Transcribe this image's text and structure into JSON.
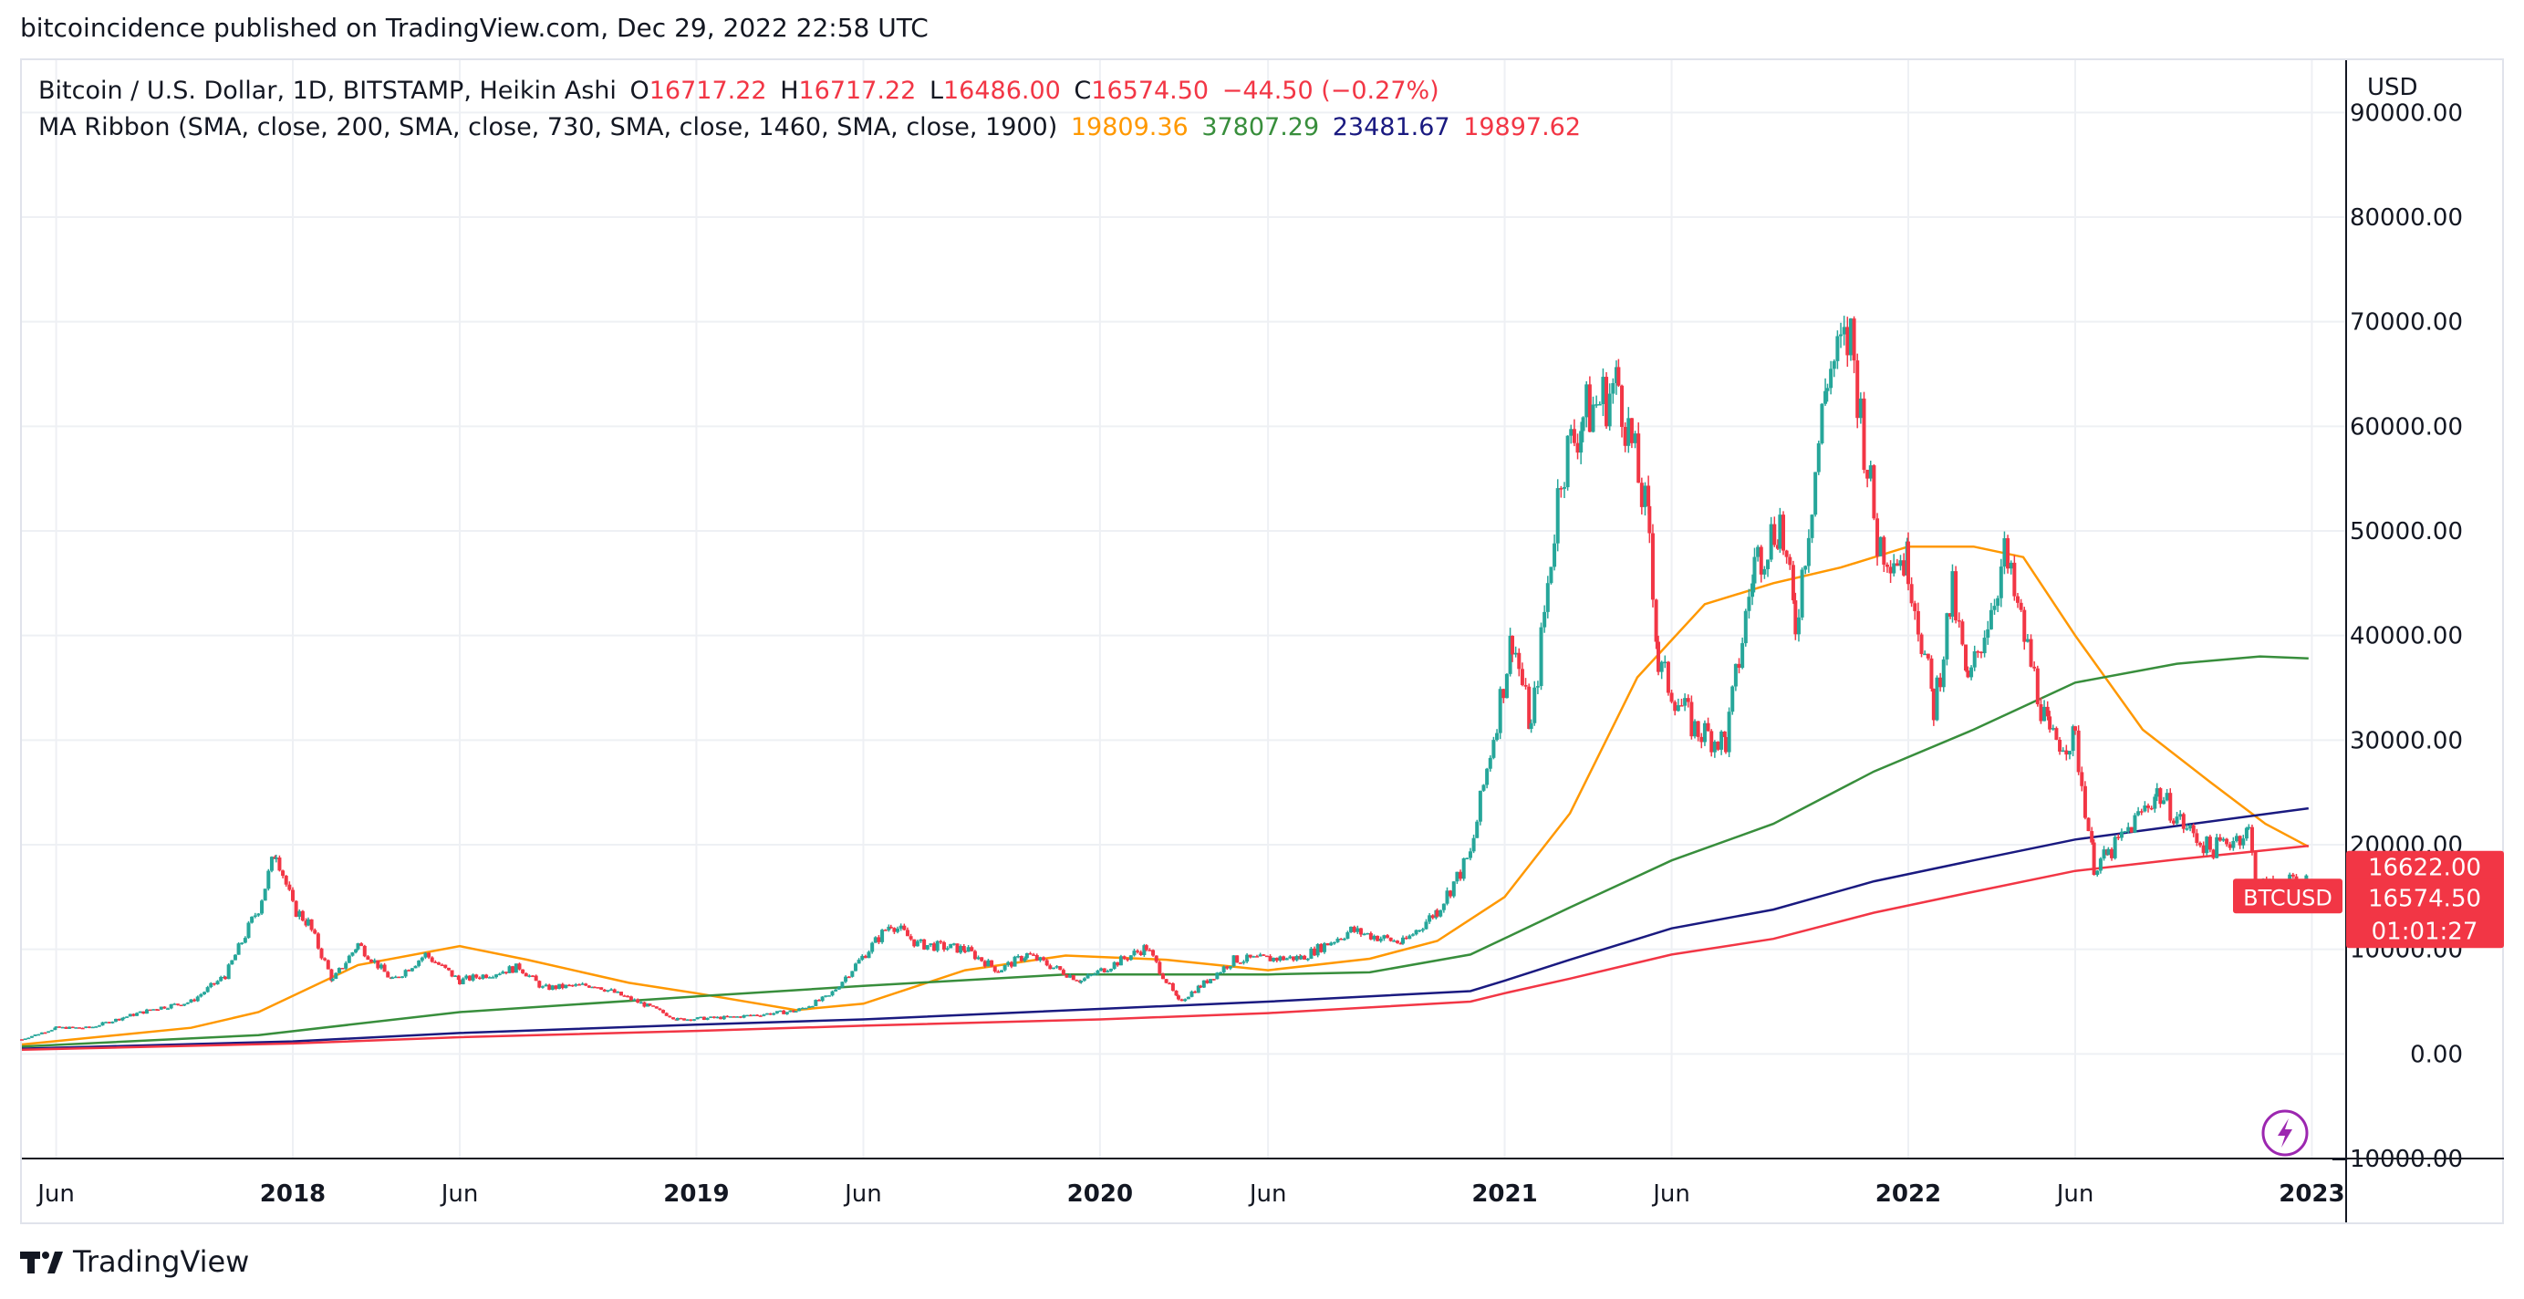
{
  "header": {
    "published_line": "bitcoincidence published on TradingView.com, Dec 29, 2022 22:58 UTC"
  },
  "legend": {
    "symbol_line": {
      "title": "Bitcoin / U.S. Dollar, 1D, BITSTAMP, Heikin Ashi",
      "o_label": "O",
      "o_value": "16717.22",
      "h_label": "H",
      "h_value": "16717.22",
      "l_label": "L",
      "l_value": "16486.00",
      "c_label": "C",
      "c_value": "16574.50",
      "change": "−44.50 (−0.27%)"
    },
    "ma_line": {
      "title": "MA Ribbon (SMA, close, 200, SMA, close, 730, SMA, close, 1460, SMA, close, 1900)",
      "v1": "19809.36",
      "v2": "37807.29",
      "v3": "23481.67",
      "v4": "19897.62"
    }
  },
  "colors": {
    "up": "#26a69a",
    "down": "#f23645",
    "ma200": "#ff9800",
    "ma730": "#388e3c",
    "ma1460": "#1a1a80",
    "ma1900": "#f23645",
    "grid": "#eef0f4",
    "axis_text": "#131722"
  },
  "icons": {
    "lightning": "lightning-icon",
    "logo": "tradingview-logo-icon"
  },
  "footer": {
    "brand": "TradingView"
  },
  "chart_data": {
    "type": "line",
    "title": "Bitcoin / U.S. Dollar, 1D, BITSTAMP, Heikin Ashi",
    "currency_label": "USD",
    "xlim": [
      "2017-05-01",
      "2023-02-01"
    ],
    "ylim": [
      -10000,
      95000
    ],
    "x_ticks": [
      {
        "date": "2017-06-01",
        "label": "Jun",
        "bold": false
      },
      {
        "date": "2018-01-01",
        "label": "2018",
        "bold": true
      },
      {
        "date": "2018-06-01",
        "label": "Jun",
        "bold": false
      },
      {
        "date": "2019-01-01",
        "label": "2019",
        "bold": true
      },
      {
        "date": "2019-06-01",
        "label": "Jun",
        "bold": false
      },
      {
        "date": "2020-01-01",
        "label": "2020",
        "bold": true
      },
      {
        "date": "2020-06-01",
        "label": "Jun",
        "bold": false
      },
      {
        "date": "2021-01-01",
        "label": "2021",
        "bold": true
      },
      {
        "date": "2021-06-01",
        "label": "Jun",
        "bold": false
      },
      {
        "date": "2022-01-01",
        "label": "2022",
        "bold": true
      },
      {
        "date": "2022-06-01",
        "label": "Jun",
        "bold": false
      },
      {
        "date": "2023-01-01",
        "label": "2023",
        "bold": true
      }
    ],
    "y_ticks": [
      {
        "value": 90000,
        "label": "90000.00"
      },
      {
        "value": 80000,
        "label": "80000.00"
      },
      {
        "value": 70000,
        "label": "70000.00"
      },
      {
        "value": 60000,
        "label": "60000.00"
      },
      {
        "value": 50000,
        "label": "50000.00"
      },
      {
        "value": 40000,
        "label": "40000.00"
      },
      {
        "value": 30000,
        "label": "30000.00"
      },
      {
        "value": 20000,
        "label": "20000.00"
      },
      {
        "value": 10000,
        "label": "10000.00"
      },
      {
        "value": 0,
        "label": "0.00"
      },
      {
        "value": -10000,
        "label": "−10000.00"
      }
    ],
    "price_series": {
      "name": "BTCUSD",
      "points": [
        [
          "2017-05-01",
          1400
        ],
        [
          "2017-06-01",
          2500
        ],
        [
          "2017-07-01",
          2500
        ],
        [
          "2017-08-01",
          3500
        ],
        [
          "2017-09-01",
          4400
        ],
        [
          "2017-10-01",
          5000
        ],
        [
          "2017-11-01",
          7500
        ],
        [
          "2017-12-01",
          14000
        ],
        [
          "2017-12-17",
          19500
        ],
        [
          "2018-01-01",
          14000
        ],
        [
          "2018-01-15",
          12500
        ],
        [
          "2018-02-06",
          7000
        ],
        [
          "2018-03-01",
          10500
        ],
        [
          "2018-04-01",
          7000
        ],
        [
          "2018-05-01",
          9500
        ],
        [
          "2018-06-01",
          7000
        ],
        [
          "2018-07-25",
          8300
        ],
        [
          "2018-08-15",
          6300
        ],
        [
          "2018-10-01",
          6600
        ],
        [
          "2018-11-20",
          4500
        ],
        [
          "2018-12-15",
          3300
        ],
        [
          "2019-02-01",
          3500
        ],
        [
          "2019-04-01",
          4100
        ],
        [
          "2019-05-01",
          5500
        ],
        [
          "2019-06-26",
          12500
        ],
        [
          "2019-07-20",
          10500
        ],
        [
          "2019-09-01",
          10000
        ],
        [
          "2019-10-01",
          8000
        ],
        [
          "2019-10-27",
          9500
        ],
        [
          "2019-12-15",
          7000
        ],
        [
          "2020-02-12",
          10200
        ],
        [
          "2020-03-12",
          5000
        ],
        [
          "2020-04-01",
          6500
        ],
        [
          "2020-05-01",
          9000
        ],
        [
          "2020-07-01",
          9200
        ],
        [
          "2020-08-15",
          11800
        ],
        [
          "2020-10-01",
          10600
        ],
        [
          "2020-11-01",
          13700
        ],
        [
          "2020-12-01",
          19000
        ],
        [
          "2021-01-08",
          40000
        ],
        [
          "2021-01-25",
          31000
        ],
        [
          "2021-02-21",
          56000
        ],
        [
          "2021-03-13",
          61000
        ],
        [
          "2021-04-14",
          64000
        ],
        [
          "2021-05-12",
          50000
        ],
        [
          "2021-05-20",
          37000
        ],
        [
          "2021-06-22",
          31000
        ],
        [
          "2021-07-20",
          29800
        ],
        [
          "2021-08-15",
          47000
        ],
        [
          "2021-09-07",
          51000
        ],
        [
          "2021-09-21",
          41000
        ],
        [
          "2021-10-20",
          65000
        ],
        [
          "2021-11-10",
          68500
        ],
        [
          "2021-12-04",
          49000
        ],
        [
          "2022-01-01",
          47000
        ],
        [
          "2022-01-24",
          33000
        ],
        [
          "2022-02-10",
          44000
        ],
        [
          "2022-02-24",
          35000
        ],
        [
          "2022-03-29",
          47500
        ],
        [
          "2022-05-09",
          30000
        ],
        [
          "2022-06-01",
          30000
        ],
        [
          "2022-06-18",
          18000
        ],
        [
          "2022-07-01",
          19000
        ],
        [
          "2022-08-14",
          25000
        ],
        [
          "2022-09-10",
          21500
        ],
        [
          "2022-10-01",
          19500
        ],
        [
          "2022-11-05",
          21300
        ],
        [
          "2022-11-12",
          16000
        ],
        [
          "2022-12-29",
          16574.5
        ]
      ]
    },
    "series": [
      {
        "name": "SMA 200",
        "color": "#ff9800",
        "value": 19809.36,
        "points": [
          [
            "2017-05-01",
            900
          ],
          [
            "2017-10-01",
            2500
          ],
          [
            "2017-12-01",
            4000
          ],
          [
            "2018-03-01",
            8500
          ],
          [
            "2018-06-01",
            10300
          ],
          [
            "2018-08-01",
            9000
          ],
          [
            "2018-11-01",
            6800
          ],
          [
            "2019-01-01",
            5800
          ],
          [
            "2019-04-01",
            4200
          ],
          [
            "2019-06-01",
            4800
          ],
          [
            "2019-09-01",
            8000
          ],
          [
            "2019-12-01",
            9400
          ],
          [
            "2020-03-01",
            9000
          ],
          [
            "2020-06-01",
            8000
          ],
          [
            "2020-09-01",
            9100
          ],
          [
            "2020-11-01",
            10800
          ],
          [
            "2021-01-01",
            15000
          ],
          [
            "2021-03-01",
            23000
          ],
          [
            "2021-05-01",
            36000
          ],
          [
            "2021-07-01",
            43000
          ],
          [
            "2021-09-01",
            45000
          ],
          [
            "2021-11-01",
            46500
          ],
          [
            "2022-01-01",
            48500
          ],
          [
            "2022-03-01",
            48500
          ],
          [
            "2022-04-15",
            47500
          ],
          [
            "2022-06-01",
            40000
          ],
          [
            "2022-08-01",
            31000
          ],
          [
            "2022-10-01",
            26000
          ],
          [
            "2022-11-20",
            22000
          ],
          [
            "2022-12-29",
            19809.36
          ]
        ]
      },
      {
        "name": "SMA 730",
        "color": "#388e3c",
        "value": 37807.29,
        "points": [
          [
            "2017-05-01",
            700
          ],
          [
            "2017-12-01",
            1800
          ],
          [
            "2018-06-01",
            4000
          ],
          [
            "2019-01-01",
            5500
          ],
          [
            "2019-06-01",
            6500
          ],
          [
            "2019-12-01",
            7600
          ],
          [
            "2020-06-01",
            7600
          ],
          [
            "2020-09-01",
            7800
          ],
          [
            "2020-12-01",
            9500
          ],
          [
            "2021-03-01",
            14000
          ],
          [
            "2021-06-01",
            18500
          ],
          [
            "2021-09-01",
            22000
          ],
          [
            "2021-12-01",
            27000
          ],
          [
            "2022-03-01",
            31000
          ],
          [
            "2022-06-01",
            35500
          ],
          [
            "2022-09-01",
            37300
          ],
          [
            "2022-11-15",
            38000
          ],
          [
            "2022-12-29",
            37807.29
          ]
        ]
      },
      {
        "name": "SMA 1460",
        "color": "#1a1a80",
        "value": 23481.67,
        "points": [
          [
            "2017-05-01",
            500
          ],
          [
            "2018-01-01",
            1200
          ],
          [
            "2018-06-01",
            2000
          ],
          [
            "2019-01-01",
            2800
          ],
          [
            "2019-06-01",
            3300
          ],
          [
            "2020-01-01",
            4300
          ],
          [
            "2020-06-01",
            5000
          ],
          [
            "2020-12-01",
            6000
          ],
          [
            "2021-01-01",
            7000
          ],
          [
            "2021-03-01",
            9000
          ],
          [
            "2021-06-01",
            12000
          ],
          [
            "2021-09-01",
            13800
          ],
          [
            "2021-12-01",
            16500
          ],
          [
            "2022-03-01",
            18500
          ],
          [
            "2022-06-01",
            20500
          ],
          [
            "2022-09-01",
            21800
          ],
          [
            "2022-12-29",
            23481.67
          ]
        ]
      },
      {
        "name": "SMA 1900",
        "color": "#f23645",
        "value": 19897.62,
        "points": [
          [
            "2017-05-01",
            400
          ],
          [
            "2018-01-01",
            1000
          ],
          [
            "2018-06-01",
            1600
          ],
          [
            "2019-01-01",
            2200
          ],
          [
            "2019-06-01",
            2700
          ],
          [
            "2020-01-01",
            3300
          ],
          [
            "2020-06-01",
            3900
          ],
          [
            "2020-12-01",
            5000
          ],
          [
            "2021-01-01",
            5800
          ],
          [
            "2021-03-01",
            7200
          ],
          [
            "2021-06-01",
            9500
          ],
          [
            "2021-09-01",
            11000
          ],
          [
            "2021-12-01",
            13500
          ],
          [
            "2022-03-01",
            15500
          ],
          [
            "2022-06-01",
            17500
          ],
          [
            "2022-09-01",
            18600
          ],
          [
            "2022-12-29",
            19897.62
          ]
        ]
      }
    ],
    "price_tags": [
      {
        "label": "16622.00",
        "value": 16622.0,
        "color": "#f23645"
      },
      {
        "label": "16574.50",
        "value": 16574.5,
        "color": "#f23645",
        "ticker": "BTCUSD",
        "countdown": "01:01:27"
      }
    ],
    "grid": true
  }
}
